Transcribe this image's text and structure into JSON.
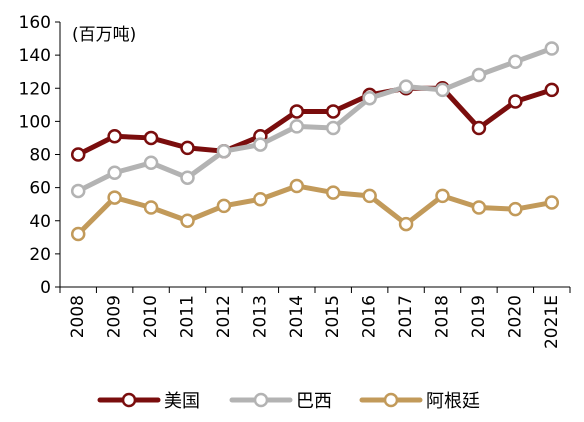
{
  "chart_data": {
    "type": "line",
    "unit_label": "(百万吨)",
    "categories": [
      "2008",
      "2009",
      "2010",
      "2011",
      "2012",
      "2013",
      "2014",
      "2015",
      "2016",
      "2017",
      "2018",
      "2019",
      "2020",
      "2021E"
    ],
    "ylim": [
      0,
      160
    ],
    "yticks": [
      0,
      20,
      40,
      60,
      80,
      100,
      120,
      140,
      160
    ],
    "grid": false,
    "legend_position": "bottom",
    "series": [
      {
        "name": "美国",
        "color": "#7a0d0d",
        "values": [
          80,
          91,
          90,
          84,
          82,
          91,
          106,
          106,
          116,
          120,
          120,
          96,
          112,
          119
        ]
      },
      {
        "name": "巴西",
        "color": "#b3b3b3",
        "values": [
          58,
          69,
          75,
          66,
          82,
          86,
          97,
          96,
          114,
          121,
          119,
          128,
          136,
          144
        ]
      },
      {
        "name": "阿根廷",
        "color": "#c29a5a",
        "values": [
          32,
          54,
          48,
          40,
          49,
          53,
          61,
          57,
          55,
          38,
          55,
          48,
          47,
          51
        ]
      }
    ]
  }
}
